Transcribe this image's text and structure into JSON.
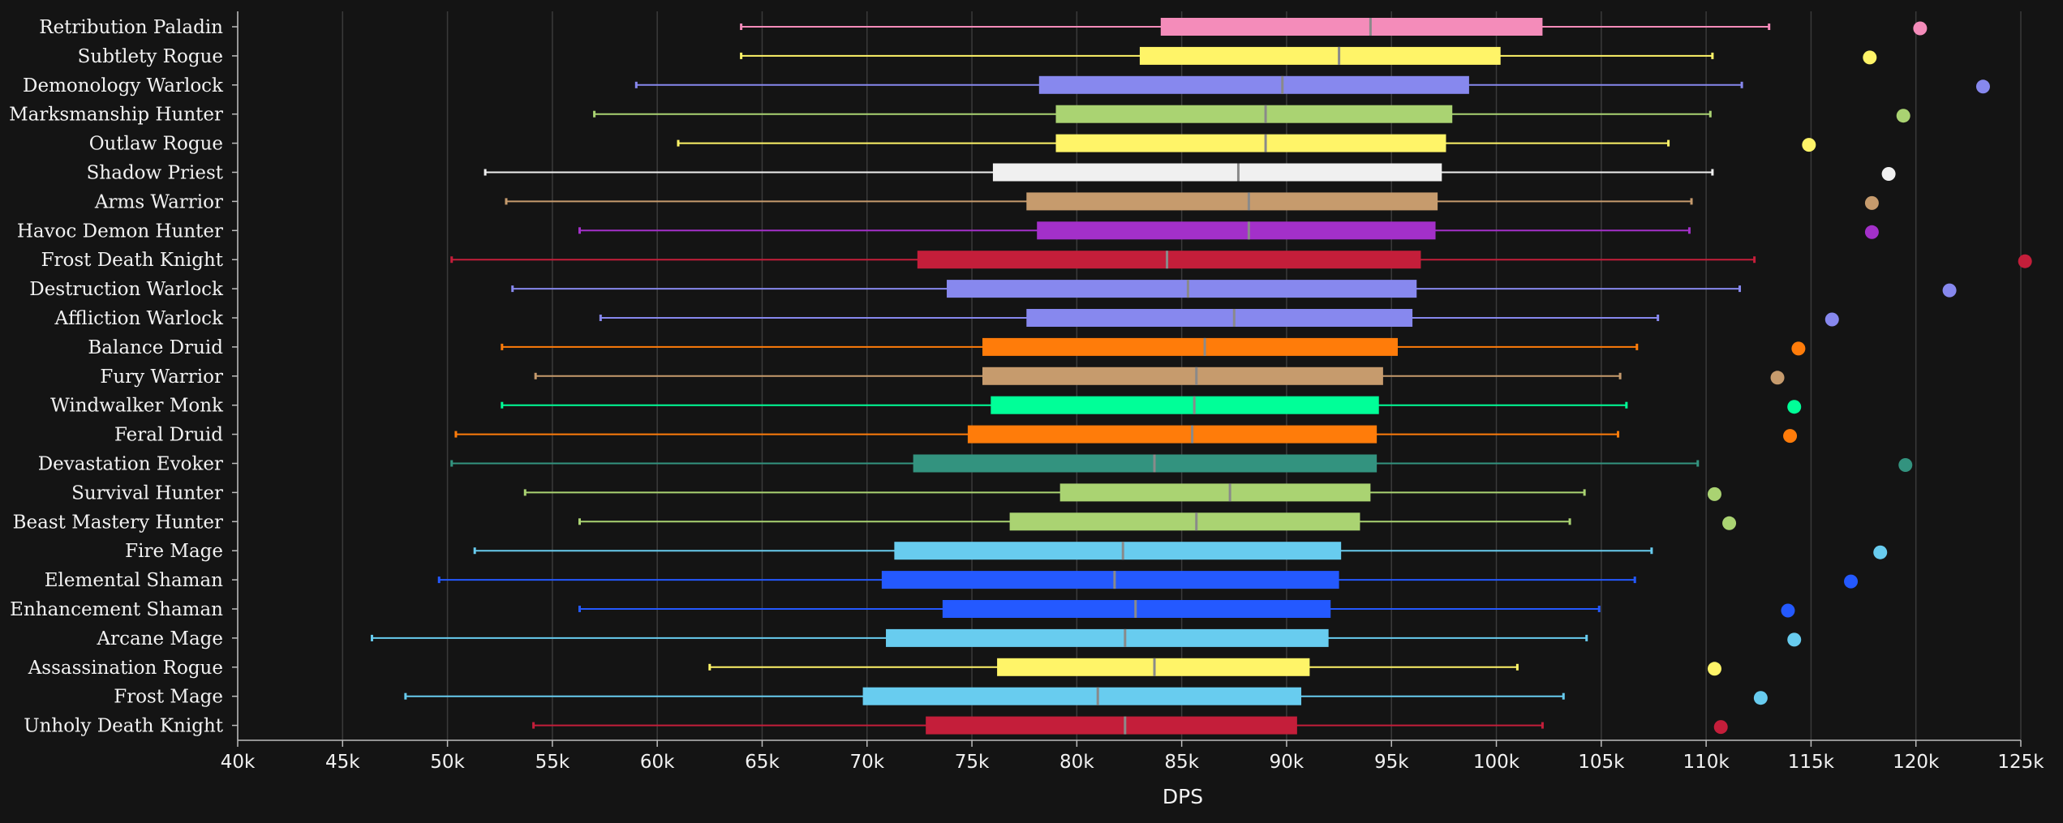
{
  "chart_data": {
    "type": "boxplot",
    "title": "",
    "xlabel": "DPS",
    "ylabel": "",
    "xlim": [
      40000,
      125000
    ],
    "x_ticks": [
      40000,
      45000,
      50000,
      55000,
      60000,
      65000,
      70000,
      75000,
      80000,
      85000,
      90000,
      95000,
      100000,
      105000,
      110000,
      115000,
      120000,
      125000
    ],
    "x_tick_labels": [
      "40k",
      "45k",
      "50k",
      "55k",
      "60k",
      "65k",
      "70k",
      "75k",
      "80k",
      "85k",
      "90k",
      "95k",
      "100k",
      "105k",
      "110k",
      "115k",
      "120k",
      "125k"
    ],
    "grid": true,
    "series": [
      {
        "name": "Retribution Paladin",
        "color": "#f48cba",
        "min": 64000,
        "q1": 84000,
        "median": 94000,
        "q3": 102200,
        "max": 113000,
        "outlier": 120200
      },
      {
        "name": "Subtlety Rogue",
        "color": "#fff468",
        "min": 64000,
        "q1": 83000,
        "median": 92500,
        "q3": 100200,
        "max": 110300,
        "outlier": 117800
      },
      {
        "name": "Demonology Warlock",
        "color": "#8788ee",
        "min": 59000,
        "q1": 78200,
        "median": 89800,
        "q3": 98700,
        "max": 111700,
        "outlier": 123200
      },
      {
        "name": "Marksmanship Hunter",
        "color": "#aad372",
        "min": 57000,
        "q1": 79000,
        "median": 89000,
        "q3": 97900,
        "max": 110200,
        "outlier": 119400
      },
      {
        "name": "Outlaw Rogue",
        "color": "#fff468",
        "min": 61000,
        "q1": 79000,
        "median": 89000,
        "q3": 97600,
        "max": 108200,
        "outlier": 114900
      },
      {
        "name": "Shadow Priest",
        "color": "#f0f0f0",
        "min": 51800,
        "q1": 76000,
        "median": 87700,
        "q3": 97400,
        "max": 110300,
        "outlier": 118700
      },
      {
        "name": "Arms Warrior",
        "color": "#c69b6d",
        "min": 52800,
        "q1": 77600,
        "median": 88200,
        "q3": 97200,
        "max": 109300,
        "outlier": 117900
      },
      {
        "name": "Havoc Demon Hunter",
        "color": "#a330c9",
        "min": 56300,
        "q1": 78100,
        "median": 88200,
        "q3": 97100,
        "max": 109200,
        "outlier": 117900
      },
      {
        "name": "Frost Death Knight",
        "color": "#c41e3a",
        "min": 50200,
        "q1": 72400,
        "median": 84300,
        "q3": 96400,
        "max": 112300,
        "outlier": 125200
      },
      {
        "name": "Destruction Warlock",
        "color": "#8788ee",
        "min": 53100,
        "q1": 73800,
        "median": 85300,
        "q3": 96200,
        "max": 111600,
        "outlier": 121600
      },
      {
        "name": "Affliction Warlock",
        "color": "#8788ee",
        "min": 57300,
        "q1": 77600,
        "median": 87500,
        "q3": 96000,
        "max": 107700,
        "outlier": 116000
      },
      {
        "name": "Balance Druid",
        "color": "#ff7c0a",
        "min": 52600,
        "q1": 75500,
        "median": 86100,
        "q3": 95300,
        "max": 106700,
        "outlier": 114400
      },
      {
        "name": "Fury Warrior",
        "color": "#c69b6d",
        "min": 54200,
        "q1": 75500,
        "median": 85700,
        "q3": 94600,
        "max": 105900,
        "outlier": 113400
      },
      {
        "name": "Windwalker Monk",
        "color": "#00ff98",
        "min": 52600,
        "q1": 75900,
        "median": 85600,
        "q3": 94400,
        "max": 106200,
        "outlier": 114200
      },
      {
        "name": "Feral Druid",
        "color": "#ff7c0a",
        "min": 50400,
        "q1": 74800,
        "median": 85500,
        "q3": 94300,
        "max": 105800,
        "outlier": 114000
      },
      {
        "name": "Devastation Evoker",
        "color": "#33937f",
        "min": 50200,
        "q1": 72200,
        "median": 83700,
        "q3": 94300,
        "max": 109600,
        "outlier": 119500
      },
      {
        "name": "Survival Hunter",
        "color": "#aad372",
        "min": 53700,
        "q1": 79200,
        "median": 87300,
        "q3": 94000,
        "max": 104200,
        "outlier": 110400
      },
      {
        "name": "Beast Mastery Hunter",
        "color": "#aad372",
        "min": 56300,
        "q1": 76800,
        "median": 85700,
        "q3": 93500,
        "max": 103500,
        "outlier": 111100
      },
      {
        "name": "Fire Mage",
        "color": "#68ccef",
        "min": 51300,
        "q1": 71300,
        "median": 82200,
        "q3": 92600,
        "max": 107400,
        "outlier": 118300
      },
      {
        "name": "Elemental Shaman",
        "color": "#2459ff",
        "min": 49600,
        "q1": 70700,
        "median": 81800,
        "q3": 92500,
        "max": 106600,
        "outlier": 116900
      },
      {
        "name": "Enhancement Shaman",
        "color": "#2459ff",
        "min": 56300,
        "q1": 73600,
        "median": 82800,
        "q3": 92100,
        "max": 104900,
        "outlier": 113900
      },
      {
        "name": "Arcane Mage",
        "color": "#68ccef",
        "min": 46400,
        "q1": 70900,
        "median": 82300,
        "q3": 92000,
        "max": 104300,
        "outlier": 114200
      },
      {
        "name": "Assassination Rogue",
        "color": "#fff468",
        "min": 62500,
        "q1": 76200,
        "median": 83700,
        "q3": 91100,
        "max": 101000,
        "outlier": 110400
      },
      {
        "name": "Frost Mage",
        "color": "#68ccef",
        "min": 48000,
        "q1": 69800,
        "median": 81000,
        "q3": 90700,
        "max": 103200,
        "outlier": 112600
      },
      {
        "name": "Unholy Death Knight",
        "color": "#c41e3a",
        "min": 54100,
        "q1": 72800,
        "median": 82300,
        "q3": 90500,
        "max": 102200,
        "outlier": 110700
      }
    ]
  },
  "colors": {
    "background": "#141414",
    "grid": "#3a3a3a",
    "axis": "#bdbdbd",
    "median": "#8a8a8a",
    "text": "#f2f2f2"
  }
}
